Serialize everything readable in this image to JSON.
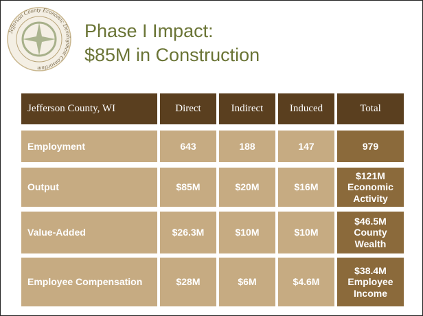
{
  "logo": {
    "text": "Jefferson County Economic Development Consortium"
  },
  "title": [
    "Phase I Impact:",
    "$85M in Construction"
  ],
  "table": {
    "header": [
      "Jefferson County, WI",
      "Direct",
      "Indirect",
      "Induced",
      "Total"
    ],
    "rows": [
      [
        "Employment",
        "643",
        "188",
        "147",
        "979"
      ],
      [
        "Output",
        "$85M",
        "$20M",
        "$16M",
        "$121M Economic Activity"
      ],
      [
        "Value-Added",
        "$26.3M",
        "$10M",
        "$10M",
        "$46.5M County Wealth"
      ],
      [
        "Employee Compensation",
        "$28M",
        "$6M",
        "$4.6M",
        "$38.4M Employee Income"
      ]
    ]
  }
}
